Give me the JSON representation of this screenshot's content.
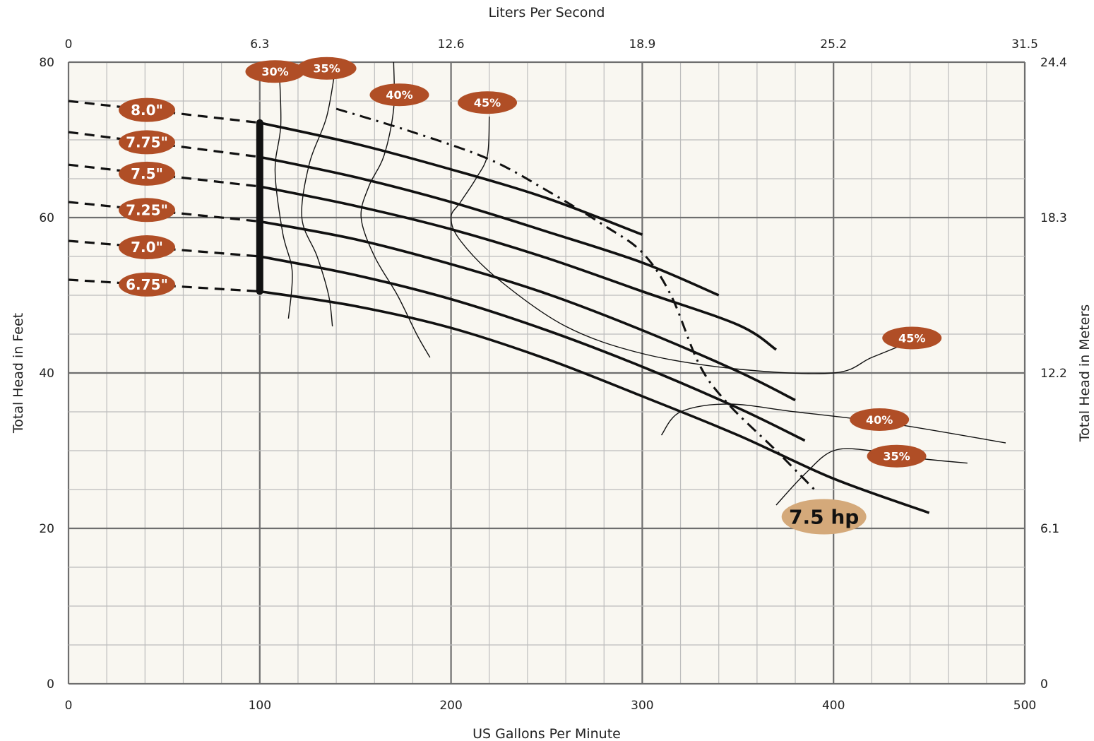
{
  "chart_data": {
    "type": "line",
    "x_bottom": {
      "label": "US Gallons Per Minute",
      "range": [
        0,
        500
      ],
      "ticks": [
        "0",
        "100",
        "200",
        "300",
        "400",
        "500"
      ]
    },
    "x_top": {
      "label": "Liters Per Second",
      "range": [
        0,
        31.5
      ],
      "ticks": [
        "0",
        "6.3",
        "12.6",
        "18.9",
        "25.2",
        "31.5"
      ]
    },
    "y_left": {
      "label": "Total Head in Feet",
      "range": [
        0,
        80
      ],
      "ticks": [
        "0",
        "20",
        "40",
        "60",
        "80"
      ]
    },
    "y_right": {
      "label": "Total Head in Meters",
      "range": [
        0,
        24.4
      ],
      "ticks": [
        "0",
        "6.1",
        "12.2",
        "18.3",
        "24.4"
      ]
    },
    "grid": true,
    "series": [
      {
        "name": "8.0\"",
        "dashed": [
          [
            0,
            75
          ],
          [
            100,
            72.2
          ]
        ],
        "solid": [
          [
            100,
            72.2
          ],
          [
            150,
            69.5
          ],
          [
            200,
            66.2
          ],
          [
            250,
            62.5
          ],
          [
            300,
            57.8
          ]
        ]
      },
      {
        "name": "7.75\"",
        "dashed": [
          [
            0,
            71
          ],
          [
            100,
            67.8
          ]
        ],
        "solid": [
          [
            100,
            67.8
          ],
          [
            150,
            65.2
          ],
          [
            200,
            62
          ],
          [
            250,
            58.2
          ],
          [
            300,
            54.2
          ],
          [
            340,
            50
          ]
        ]
      },
      {
        "name": "7.5\"",
        "dashed": [
          [
            0,
            66.8
          ],
          [
            100,
            64
          ]
        ],
        "solid": [
          [
            100,
            64
          ],
          [
            150,
            61.5
          ],
          [
            200,
            58.5
          ],
          [
            250,
            54.8
          ],
          [
            300,
            50.5
          ],
          [
            350,
            46.2
          ],
          [
            370,
            43
          ]
        ]
      },
      {
        "name": "7.25\"",
        "dashed": [
          [
            0,
            62
          ],
          [
            100,
            59.5
          ]
        ],
        "solid": [
          [
            100,
            59.5
          ],
          [
            150,
            57.2
          ],
          [
            200,
            54
          ],
          [
            250,
            50.2
          ],
          [
            300,
            45.5
          ],
          [
            350,
            40.2
          ],
          [
            380,
            36.5
          ]
        ]
      },
      {
        "name": "7.0\"",
        "dashed": [
          [
            0,
            57
          ],
          [
            100,
            55
          ]
        ],
        "solid": [
          [
            100,
            55
          ],
          [
            150,
            52.6
          ],
          [
            200,
            49.5
          ],
          [
            250,
            45.5
          ],
          [
            300,
            40.8
          ],
          [
            350,
            35.5
          ],
          [
            385,
            31.3
          ]
        ]
      },
      {
        "name": "6.75\"",
        "dashed": [
          [
            0,
            52
          ],
          [
            100,
            50.5
          ]
        ],
        "solid": [
          [
            100,
            50.5
          ],
          [
            150,
            48.6
          ],
          [
            200,
            45.8
          ],
          [
            250,
            41.8
          ],
          [
            300,
            37
          ],
          [
            350,
            32
          ],
          [
            400,
            26.4
          ],
          [
            450,
            22
          ]
        ]
      }
    ],
    "efficiency_curves": [
      {
        "label": "30%",
        "points": [
          [
            110,
            80
          ],
          [
            111,
            72
          ],
          [
            108,
            66
          ],
          [
            112,
            58
          ],
          [
            117,
            53
          ],
          [
            115,
            47
          ]
        ]
      },
      {
        "label": "35%",
        "points": [
          [
            140,
            80
          ],
          [
            135,
            73
          ],
          [
            126,
            67
          ],
          [
            122,
            60
          ],
          [
            130,
            55
          ],
          [
            136,
            50
          ],
          [
            138,
            46
          ]
        ]
      },
      {
        "label": "35%",
        "points": [
          [
            370,
            23
          ],
          [
            385,
            27
          ],
          [
            400,
            30
          ],
          [
            420,
            30
          ],
          [
            445,
            29
          ],
          [
            470,
            28.4
          ]
        ]
      },
      {
        "label": "40%",
        "points": [
          [
            170,
            80
          ],
          [
            170,
            74
          ],
          [
            165,
            68
          ],
          [
            157,
            64
          ],
          [
            153,
            60
          ],
          [
            160,
            55
          ],
          [
            172,
            50
          ],
          [
            182,
            45
          ],
          [
            189,
            42
          ]
        ]
      },
      {
        "label": "40%",
        "points": [
          [
            310,
            32
          ],
          [
            320,
            35
          ],
          [
            345,
            36
          ],
          [
            380,
            35
          ],
          [
            430,
            33.5
          ],
          [
            490,
            31
          ]
        ]
      },
      {
        "label": "45%",
        "points": [
          [
            220,
            73
          ],
          [
            219,
            68
          ],
          [
            213,
            65
          ],
          [
            205,
            62
          ],
          [
            200,
            60
          ],
          [
            205,
            57
          ],
          [
            225,
            52
          ],
          [
            260,
            46
          ],
          [
            300,
            42.5
          ],
          [
            350,
            40.5
          ],
          [
            400,
            40
          ],
          [
            420,
            42
          ],
          [
            440,
            44
          ]
        ]
      }
    ],
    "power_line": {
      "label": "7.5 hp",
      "points": [
        [
          140,
          74
        ],
        [
          180,
          71
        ],
        [
          220,
          67.5
        ],
        [
          250,
          63.5
        ],
        [
          280,
          59
        ],
        [
          300,
          55.5
        ],
        [
          315,
          50
        ],
        [
          330,
          41
        ],
        [
          345,
          36
        ],
        [
          370,
          30
        ],
        [
          390,
          25
        ]
      ]
    },
    "max_impeller_bar": {
      "x": 100,
      "y_range": [
        50.5,
        72.2
      ]
    }
  }
}
